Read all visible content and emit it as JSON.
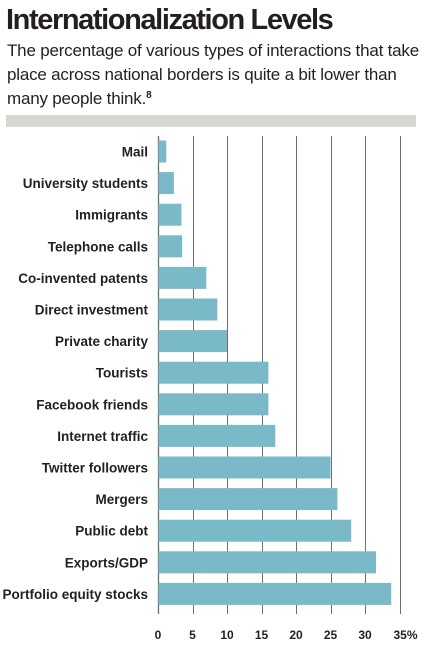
{
  "header": {
    "title": "Internationalization Levels",
    "subtitle": "The percentage of various types of interactions that take place across national borders is quite a bit lower than many people think.",
    "footnote_marker": "8"
  },
  "colors": {
    "bar": "#7ab9c8",
    "grid": "#6d6e70",
    "band": "#d6d6d2",
    "text": "#231f20"
  },
  "chart_data": {
    "type": "bar",
    "orientation": "horizontal",
    "categories": [
      "Mail",
      "University students",
      "Immigrants",
      "Telephone calls",
      "Co-invented patents",
      "Direct investment",
      "Private charity",
      "Tourists",
      "Facebook friends",
      "Internet traffic",
      "Twitter followers",
      "Mergers",
      "Public debt",
      "Exports/GDP",
      "Portfolio equity stocks"
    ],
    "values": [
      1.2,
      2.3,
      3.4,
      3.5,
      7,
      8.6,
      10,
      16,
      16,
      17,
      25,
      26,
      28,
      31.6,
      33.8
    ],
    "xlim": [
      0,
      35
    ],
    "xticks": [
      "0",
      "5",
      "10",
      "15",
      "20",
      "25",
      "30",
      "35%"
    ],
    "title": "Internationalization Levels",
    "xlabel": "",
    "ylabel": "",
    "grid": true,
    "legend": "none"
  }
}
